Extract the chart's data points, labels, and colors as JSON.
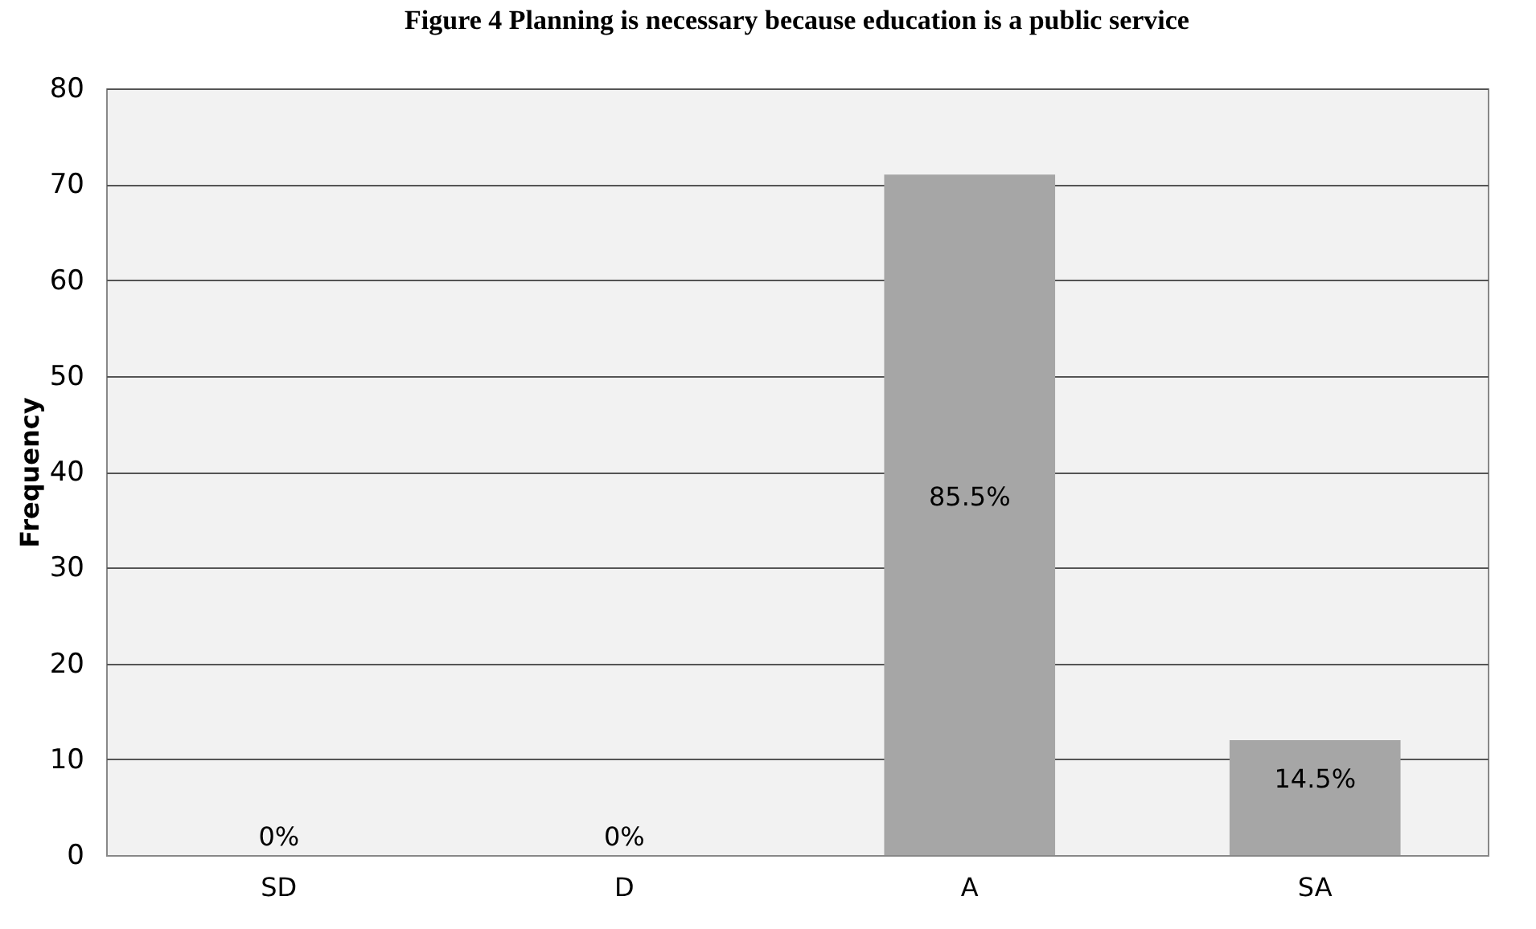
{
  "chart_data": {
    "type": "bar",
    "title": "Figure 4 Planning is necessary because education is a public service",
    "ylabel": "Frequency",
    "categories": [
      "SD",
      "D",
      "A",
      "SA"
    ],
    "values": [
      0,
      0,
      71,
      12
    ],
    "annotations": [
      "0%",
      "0%",
      "85.5%",
      "14.5%"
    ],
    "color": "#a6a6a6",
    "ylim": [
      0,
      80
    ],
    "yticks": [
      0,
      10,
      20,
      30,
      40,
      50,
      60,
      70,
      80
    ],
    "grid": "y"
  }
}
